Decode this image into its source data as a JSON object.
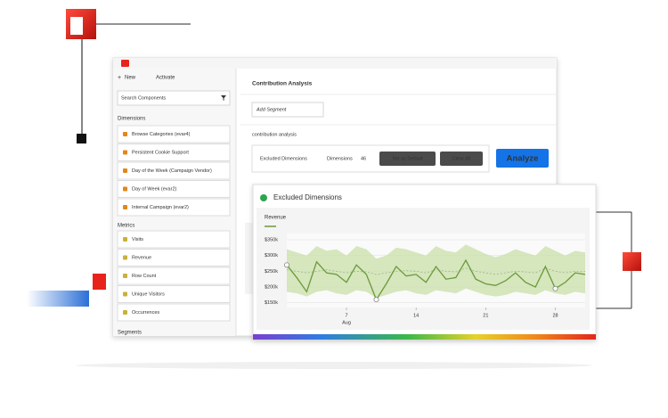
{
  "toolbar": {
    "new": "New",
    "activate": "Activate"
  },
  "sidebar": {
    "search": "Search Components",
    "dimensions_title": "Dimensions",
    "dimensions": [
      "Browse Categories (evar4)",
      "Persistent Cookie Support",
      "Day of the Week (Campaign Vendor)",
      "Day of Week (evar2)",
      "Internal Campaign (evar2)"
    ],
    "metrics_title": "Metrics",
    "metrics": [
      "Visits",
      "Revenue",
      "Row Count",
      "Unique Visitors",
      "Occurrences"
    ],
    "segments_title": "Segments"
  },
  "panel": {
    "title": "Contribution Analysis",
    "add_segment": "Add Segment",
    "subtitle": "contribution analysis",
    "excluded_label": "Excluded Dimensions",
    "dimensions_link": "Dimensions",
    "count": 46,
    "set_default": "Set as Default",
    "clear_all": "Clear All",
    "analyze": "Analyze"
  },
  "popup": {
    "title": "Excluded Dimensions"
  },
  "chart_data": {
    "type": "line",
    "title": "Revenue",
    "x_annotation": "Aug",
    "x": [
      1,
      2,
      3,
      4,
      5,
      6,
      7,
      8,
      9,
      10,
      11,
      12,
      13,
      14,
      15,
      16,
      17,
      18,
      19,
      20,
      21,
      22,
      23,
      24,
      25,
      26,
      27,
      28,
      29,
      30,
      31
    ],
    "series": [
      {
        "name": "Revenue",
        "color": "#6a9a3a",
        "values": [
          270000,
          230000,
          185000,
          280000,
          245000,
          240000,
          215000,
          270000,
          240000,
          160000,
          210000,
          265000,
          235000,
          240000,
          215000,
          265000,
          225000,
          230000,
          285000,
          225000,
          210000,
          205000,
          220000,
          245000,
          215000,
          200000,
          265000,
          195000,
          215000,
          245000,
          240000
        ]
      }
    ],
    "expected": [
      255000,
      250000,
      245000,
      250000,
      255000,
      250000,
      245000,
      250000,
      248000,
      240000,
      245000,
      250000,
      252000,
      250000,
      245000,
      255000,
      250000,
      248000,
      260000,
      250000,
      245000,
      240000,
      245000,
      250000,
      248000,
      245000,
      260000,
      250000,
      245000,
      250000,
      250000
    ],
    "band_upper": [
      320000,
      310000,
      300000,
      330000,
      315000,
      320000,
      300000,
      330000,
      320000,
      290000,
      300000,
      325000,
      320000,
      310000,
      300000,
      330000,
      315000,
      310000,
      335000,
      320000,
      305000,
      295000,
      305000,
      320000,
      310000,
      300000,
      330000,
      315000,
      300000,
      315000,
      310000
    ],
    "band_lower": [
      185000,
      180000,
      170000,
      185000,
      190000,
      180000,
      175000,
      190000,
      185000,
      165000,
      175000,
      185000,
      190000,
      180000,
      175000,
      190000,
      185000,
      180000,
      195000,
      185000,
      175000,
      170000,
      175000,
      185000,
      180000,
      175000,
      190000,
      180000,
      175000,
      185000,
      180000
    ],
    "highlight_x": [
      1,
      10,
      28
    ],
    "xlim": [
      1,
      31
    ],
    "xticks": [
      7,
      14,
      21,
      28
    ],
    "ylim": [
      135000,
      370000
    ],
    "yticks": [
      {
        "value": 350000,
        "label": "$350k"
      },
      {
        "value": 300000,
        "label": "$300k"
      },
      {
        "value": 250000,
        "label": "$250k"
      },
      {
        "value": 200000,
        "label": "$200k"
      },
      {
        "value": 150000,
        "label": "$150k"
      }
    ],
    "band_color": "#c9dfa8",
    "grid": true
  }
}
